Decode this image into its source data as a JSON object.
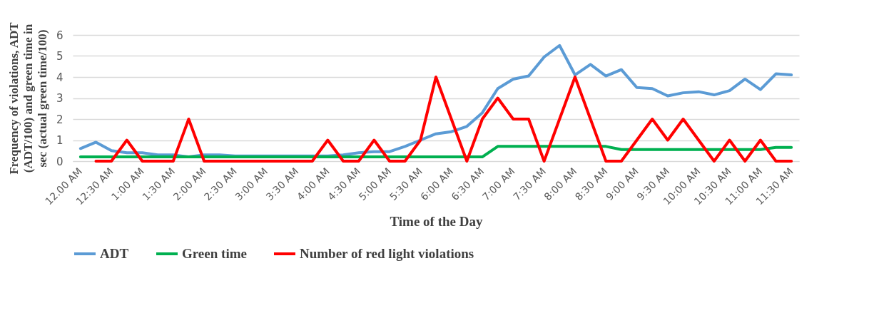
{
  "chart_data": {
    "type": "line",
    "xlabel": "Time of the Day",
    "ylabel": "Frequency of violations, ADT (ADT/100) and green time in sec (actual green time/100)",
    "categories": [
      "12.00 AM",
      null,
      "12:30 AM",
      null,
      "1:00 AM",
      null,
      "1:30 AM",
      null,
      "2:00 AM",
      null,
      "2:30 AM",
      null,
      "3:00 AM",
      null,
      "3:30 AM",
      null,
      "4:00 AM",
      null,
      "4:30 AM",
      null,
      "5:00 AM",
      null,
      "5:30 AM",
      null,
      "6:00 AM",
      null,
      "6:30 AM",
      null,
      "7:00 AM",
      null,
      "7:30 AM",
      null,
      "8:00 AM",
      null,
      "8:30 AM",
      null,
      "9:00 AM",
      null,
      "9:30 AM",
      null,
      "10:00 AM",
      null,
      "10:30 AM",
      null,
      "11:00 AM",
      null,
      "11:30 AM"
    ],
    "series": [
      {
        "name": "ADT",
        "color": "#5b9bd5",
        "values": [
          0.6,
          0.9,
          0.5,
          0.4,
          0.4,
          0.3,
          0.3,
          0.2,
          0.3,
          0.3,
          0.25,
          null,
          null,
          null,
          null,
          null,
          0.25,
          0.3,
          0.4,
          0.45,
          0.45,
          0.7,
          1.0,
          1.3,
          1.4,
          1.65,
          2.3,
          3.45,
          3.9,
          4.05,
          4.95,
          5.5,
          4.1,
          4.6,
          4.05,
          4.35,
          3.5,
          3.45,
          3.1,
          3.25,
          3.3,
          3.15,
          3.35,
          3.9,
          3.4,
          4.15,
          4.1
        ]
      },
      {
        "name": "Green time",
        "color": "#00b050",
        "values": [
          0.2,
          0.2,
          0.2,
          0.2,
          0.2,
          0.2,
          0.2,
          0.2,
          0.2,
          0.2,
          0.2,
          0.2,
          0.2,
          0.2,
          0.2,
          0.2,
          0.2,
          0.2,
          0.2,
          0.2,
          0.2,
          0.2,
          0.2,
          0.2,
          0.2,
          0.2,
          0.2,
          0.7,
          0.7,
          0.7,
          0.7,
          0.7,
          0.7,
          0.7,
          0.7,
          0.55,
          0.55,
          0.55,
          0.55,
          0.55,
          0.55,
          0.55,
          0.55,
          0.55,
          0.55,
          0.65,
          0.65
        ]
      },
      {
        "name": "Number of red light violations",
        "color": "#ff0000",
        "values": [
          null,
          0,
          0,
          1,
          0,
          0,
          0,
          2,
          0,
          0,
          0,
          0,
          0,
          0,
          0,
          0,
          1,
          0,
          0,
          1,
          0,
          0,
          1,
          4,
          2,
          0,
          2,
          3,
          2,
          2,
          0,
          2,
          4,
          2,
          0,
          0,
          1,
          2,
          1,
          2,
          1,
          0,
          1,
          0,
          1,
          0,
          0
        ]
      }
    ],
    "ylim": [
      0,
      6
    ],
    "yticks": [
      0,
      1,
      2,
      3,
      4,
      5,
      6
    ],
    "grid": "y",
    "legend": "bottom"
  }
}
